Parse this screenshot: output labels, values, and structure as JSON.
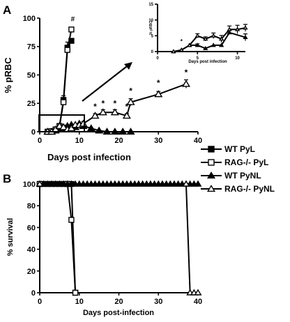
{
  "chart_data": [
    {
      "panel": "A",
      "type": "line",
      "xlabel": "Days post infection",
      "ylabel": "% pRBC",
      "xlim": [
        0,
        40
      ],
      "ylim": [
        0,
        100
      ],
      "xticks": [
        0,
        10,
        20,
        30,
        40
      ],
      "yticks": [
        0,
        25,
        50,
        75,
        100
      ],
      "grid": false,
      "series": [
        {
          "name": "WT PyL",
          "marker": "filled-square",
          "x": [
            2,
            3,
            4,
            5,
            6,
            7,
            8
          ],
          "y": [
            0,
            0.5,
            2,
            5,
            28,
            74,
            80
          ]
        },
        {
          "name": "RAG-/- PyL",
          "marker": "open-square",
          "x": [
            2,
            3,
            4,
            5,
            6,
            7,
            8
          ],
          "y": [
            0,
            0.5,
            2,
            5,
            26,
            72,
            90
          ]
        },
        {
          "name": "WT PyNL",
          "marker": "filled-triangle",
          "x": [
            2,
            3,
            4,
            5,
            6,
            7,
            8,
            9,
            10,
            11,
            13,
            15,
            17,
            19,
            21,
            23
          ],
          "y": [
            0,
            0,
            1,
            2,
            3,
            5,
            6,
            4,
            7,
            5,
            3,
            1,
            0,
            0,
            0,
            0
          ]
        },
        {
          "name": "RAG-/- PyNL",
          "marker": "open-triangle",
          "x": [
            2,
            3,
            4,
            5,
            6,
            7,
            8,
            9,
            10,
            11,
            14,
            16,
            19,
            22,
            23,
            30,
            37
          ],
          "y": [
            0,
            0,
            2,
            5,
            4,
            2,
            3,
            6,
            6,
            7,
            14,
            17,
            17,
            14,
            26,
            33,
            42
          ]
        }
      ],
      "annotations": {
        "hash": "#",
        "star": "*"
      },
      "inset": {
        "xlabel": "Days post infection",
        "ylabel": "% pRBC",
        "xlim": [
          0,
          11
        ],
        "ylim": [
          0,
          15
        ],
        "xticks": [
          0,
          5,
          10
        ],
        "yticks": [
          0,
          5,
          10,
          15
        ],
        "series": [
          {
            "name": "WT PyNL",
            "x": [
              2,
              3,
              4,
              5,
              6,
              7,
              8,
              9,
              11
            ],
            "y": [
              0,
              0.5,
              2,
              2,
              1,
              2,
              2,
              6,
              4.5
            ]
          },
          {
            "name": "RAG-/- PyNL",
            "x": [
              2,
              3,
              4,
              5,
              6,
              7,
              8,
              9,
              10,
              11
            ],
            "y": [
              0,
              0.5,
              2,
              5,
              4,
              5,
              4,
              7,
              7,
              7.5
            ]
          }
        ]
      }
    },
    {
      "panel": "B",
      "type": "line",
      "xlabel": "Days post-infection",
      "ylabel": "% survival",
      "xlim": [
        0,
        40
      ],
      "ylim": [
        0,
        100
      ],
      "xticks": [
        0,
        10,
        20,
        30,
        40
      ],
      "yticks": [
        0,
        20,
        40,
        60,
        80,
        100
      ],
      "grid": false,
      "series": [
        {
          "name": "WT PyL",
          "marker": "filled-square",
          "x": [
            0,
            8,
            9
          ],
          "y": [
            100,
            100,
            0
          ]
        },
        {
          "name": "RAG-/- PyL",
          "marker": "open-square",
          "x": [
            0,
            7,
            8,
            9
          ],
          "y": [
            100,
            100,
            67,
            0
          ]
        },
        {
          "name": "WT PyNL",
          "marker": "filled-triangle",
          "x": [
            0,
            40
          ],
          "y": [
            100,
            100
          ]
        },
        {
          "name": "RAG-/- PyNL",
          "marker": "open-triangle",
          "x": [
            0,
            37,
            38,
            39,
            40
          ],
          "y": [
            100,
            100,
            0,
            0,
            0
          ]
        }
      ]
    }
  ],
  "labels": {
    "panel_a": "A",
    "panel_b": "B"
  },
  "legend": [
    {
      "label": "WT PyL",
      "marker": "filled-square"
    },
    {
      "label": "RAG-/- PyL",
      "marker": "open-square"
    },
    {
      "label": "WT PyNL",
      "marker": "filled-triangle"
    },
    {
      "label": "RAG-/- PyNL",
      "marker": "open-triangle"
    }
  ]
}
